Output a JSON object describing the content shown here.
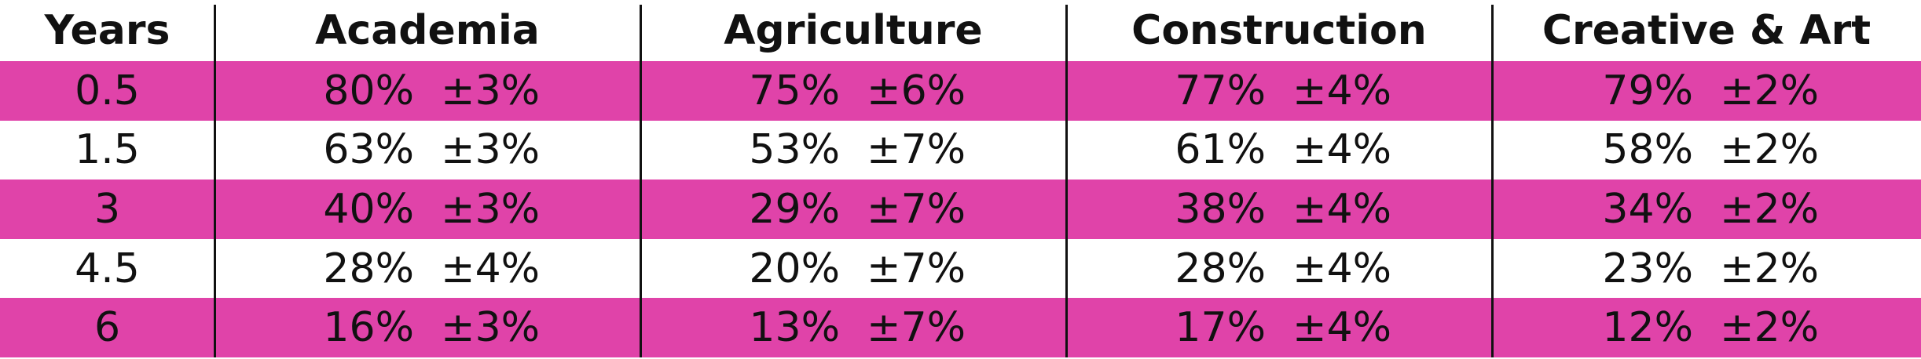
{
  "table": {
    "headers": [
      "Years",
      "Academia",
      "Agriculture",
      "Construction",
      "Creative & Art"
    ],
    "rows": [
      {
        "year": "0.5",
        "cells": [
          {
            "value": "80%",
            "error": "±3%"
          },
          {
            "value": "75%",
            "error": "±6%"
          },
          {
            "value": "77%",
            "error": "±4%"
          },
          {
            "value": "79%",
            "error": "±2%"
          }
        ]
      },
      {
        "year": "1.5",
        "cells": [
          {
            "value": "63%",
            "error": "±3%"
          },
          {
            "value": "53%",
            "error": "±7%"
          },
          {
            "value": "61%",
            "error": "±4%"
          },
          {
            "value": "58%",
            "error": "±2%"
          }
        ]
      },
      {
        "year": "3",
        "cells": [
          {
            "value": "40%",
            "error": "±3%"
          },
          {
            "value": "29%",
            "error": "±7%"
          },
          {
            "value": "38%",
            "error": "±4%"
          },
          {
            "value": "34%",
            "error": "±2%"
          }
        ]
      },
      {
        "year": "4.5",
        "cells": [
          {
            "value": "28%",
            "error": "±4%"
          },
          {
            "value": "20%",
            "error": "±7%"
          },
          {
            "value": "28%",
            "error": "±4%"
          },
          {
            "value": "23%",
            "error": "±2%"
          }
        ]
      },
      {
        "year": "6",
        "cells": [
          {
            "value": "16%",
            "error": "±3%"
          },
          {
            "value": "13%",
            "error": "±7%"
          },
          {
            "value": "17%",
            "error": "±4%"
          },
          {
            "value": "12%",
            "error": "±2%"
          }
        ]
      }
    ]
  }
}
